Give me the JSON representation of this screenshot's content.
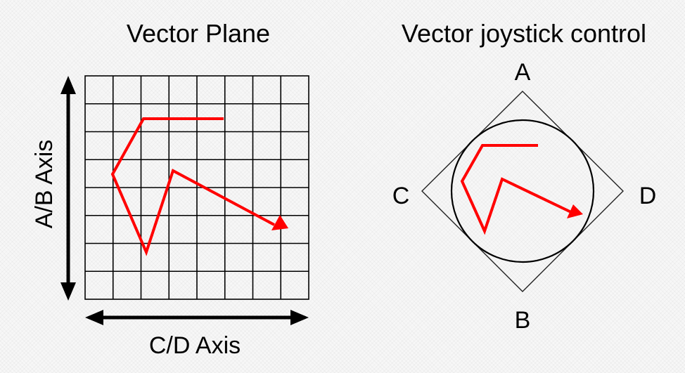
{
  "left_panel": {
    "title": "Vector Plane",
    "vertical_axis_label": "A/B Axis",
    "horizontal_axis_label": "C/D Axis",
    "grid": {
      "columns": 8,
      "rows": 8
    }
  },
  "right_panel": {
    "title": "Vector joystick control",
    "labels": {
      "top": "A",
      "bottom": "B",
      "left": "C",
      "right": "D"
    }
  },
  "colors": {
    "path": "#ff0000",
    "lines": "#000000"
  }
}
